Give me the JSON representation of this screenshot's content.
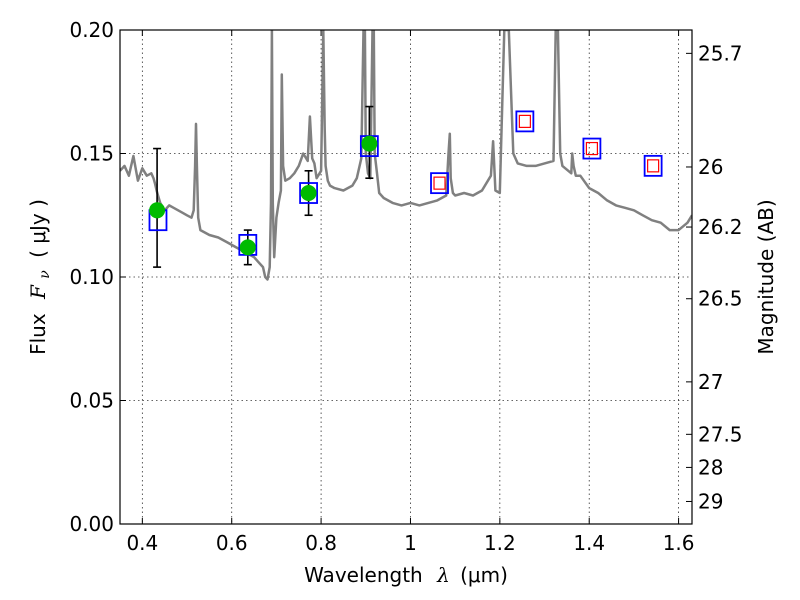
{
  "chart_data": {
    "type": "scatter",
    "title": "",
    "xlabel": {
      "text": "Wavelength",
      "symbol": "λ",
      "unit": "(μm)"
    },
    "ylabel": {
      "text": "Flux",
      "symbol": "F",
      "subscript": "ν",
      "unit": "( μJy )"
    },
    "y2label": "Magnitude (AB)",
    "xlim": [
      0.35,
      1.63
    ],
    "ylim": [
      0.0,
      0.2
    ],
    "grid": true,
    "x_ticks": [
      {
        "v": 0.4,
        "label": "0.4"
      },
      {
        "v": 0.6,
        "label": "0.6"
      },
      {
        "v": 0.8,
        "label": "0.8"
      },
      {
        "v": 1.0,
        "label": "1"
      },
      {
        "v": 1.2,
        "label": "1.2"
      },
      {
        "v": 1.4,
        "label": "1.4"
      },
      {
        "v": 1.6,
        "label": "1.6"
      }
    ],
    "y_ticks": [
      {
        "v": 0.0,
        "label": "0.00"
      },
      {
        "v": 0.05,
        "label": "0.05"
      },
      {
        "v": 0.1,
        "label": "0.10"
      },
      {
        "v": 0.15,
        "label": "0.15"
      },
      {
        "v": 0.2,
        "label": "0.20"
      }
    ],
    "y2_ticks": [
      {
        "mag": 25.7,
        "label": "25.7"
      },
      {
        "mag": 26,
        "label": "26"
      },
      {
        "mag": 26.2,
        "label": "26.2"
      },
      {
        "mag": 26.5,
        "label": "26.5"
      },
      {
        "mag": 27,
        "label": "27"
      },
      {
        "mag": 27.5,
        "label": "27.5"
      },
      {
        "mag": 28,
        "label": "28"
      },
      {
        "mag": 29,
        "label": "29"
      }
    ],
    "model_spectrum": {
      "color": "#808080",
      "x": [
        0.35,
        0.36,
        0.37,
        0.38,
        0.39,
        0.4,
        0.41,
        0.42,
        0.425,
        0.428,
        0.432,
        0.435,
        0.44,
        0.45,
        0.46,
        0.47,
        0.48,
        0.49,
        0.5,
        0.51,
        0.515,
        0.518,
        0.52,
        0.522,
        0.525,
        0.53,
        0.55,
        0.57,
        0.59,
        0.61,
        0.63,
        0.65,
        0.66,
        0.67,
        0.675,
        0.68,
        0.685,
        0.688,
        0.69,
        0.692,
        0.695,
        0.7,
        0.705,
        0.71,
        0.712,
        0.715,
        0.72,
        0.73,
        0.74,
        0.75,
        0.76,
        0.77,
        0.775,
        0.78,
        0.785,
        0.79,
        0.8,
        0.805,
        0.808,
        0.81,
        0.815,
        0.82,
        0.83,
        0.85,
        0.87,
        0.88,
        0.89,
        0.895,
        0.898,
        0.9,
        0.905,
        0.91,
        0.915,
        0.918,
        0.92,
        0.925,
        0.93,
        0.94,
        0.96,
        0.98,
        1.0,
        1.02,
        1.04,
        1.06,
        1.08,
        1.085,
        1.088,
        1.09,
        1.095,
        1.1,
        1.12,
        1.14,
        1.16,
        1.18,
        1.185,
        1.19,
        1.2,
        1.21,
        1.215,
        1.22,
        1.23,
        1.24,
        1.26,
        1.28,
        1.3,
        1.32,
        1.325,
        1.33,
        1.335,
        1.34,
        1.36,
        1.362,
        1.365,
        1.37,
        1.38,
        1.4,
        1.42,
        1.44,
        1.46,
        1.48,
        1.5,
        1.52,
        1.54,
        1.56,
        1.58,
        1.6,
        1.62,
        1.63
      ],
      "y": [
        0.143,
        0.145,
        0.141,
        0.149,
        0.139,
        0.144,
        0.141,
        0.142,
        0.14,
        0.138,
        0.135,
        0.133,
        0.13,
        0.127,
        0.129,
        0.128,
        0.127,
        0.126,
        0.125,
        0.124,
        0.127,
        0.145,
        0.162,
        0.145,
        0.124,
        0.119,
        0.117,
        0.116,
        0.114,
        0.112,
        0.11,
        0.108,
        0.106,
        0.104,
        0.1,
        0.099,
        0.104,
        0.13,
        0.2,
        0.13,
        0.108,
        0.124,
        0.13,
        0.135,
        0.182,
        0.145,
        0.139,
        0.14,
        0.142,
        0.145,
        0.15,
        0.147,
        0.165,
        0.148,
        0.146,
        0.14,
        0.143,
        0.2,
        0.16,
        0.145,
        0.139,
        0.137,
        0.136,
        0.135,
        0.137,
        0.14,
        0.148,
        0.2,
        0.2,
        0.15,
        0.142,
        0.14,
        0.2,
        0.2,
        0.15,
        0.142,
        0.134,
        0.132,
        0.13,
        0.129,
        0.13,
        0.129,
        0.13,
        0.131,
        0.133,
        0.15,
        0.158,
        0.14,
        0.134,
        0.133,
        0.134,
        0.133,
        0.135,
        0.141,
        0.155,
        0.135,
        0.134,
        0.2,
        0.2,
        0.2,
        0.15,
        0.146,
        0.145,
        0.145,
        0.146,
        0.147,
        0.2,
        0.2,
        0.15,
        0.145,
        0.142,
        0.15,
        0.145,
        0.141,
        0.141,
        0.136,
        0.134,
        0.131,
        0.129,
        0.128,
        0.127,
        0.125,
        0.123,
        0.122,
        0.119,
        0.119,
        0.122,
        0.125
      ]
    },
    "series": [
      {
        "marker": "circle",
        "color": "#00bb00",
        "points": [
          {
            "x": 0.433,
            "y": 0.127,
            "yerr_low": 0.104,
            "yerr_high": 0.152
          },
          {
            "x": 0.636,
            "y": 0.112,
            "yerr_low": 0.105,
            "yerr_high": 0.119
          },
          {
            "x": 0.772,
            "y": 0.134,
            "yerr_low": 0.125,
            "yerr_high": 0.143
          },
          {
            "x": 0.908,
            "y": 0.154,
            "yerr_low": 0.14,
            "yerr_high": 0.169
          }
        ]
      },
      {
        "marker": "square-open",
        "color": "#0000ff",
        "points": [
          {
            "x": 0.435,
            "y": 0.123
          },
          {
            "x": 0.636,
            "y": 0.113
          },
          {
            "x": 0.772,
            "y": 0.134
          },
          {
            "x": 0.908,
            "y": 0.153
          },
          {
            "x": 1.065,
            "y": 0.138
          },
          {
            "x": 1.256,
            "y": 0.163
          },
          {
            "x": 1.406,
            "y": 0.152
          },
          {
            "x": 1.543,
            "y": 0.145
          }
        ]
      },
      {
        "marker": "square-open-small",
        "color": "#ff0000",
        "points": [
          {
            "x": 1.065,
            "y": 0.138
          },
          {
            "x": 1.256,
            "y": 0.163
          },
          {
            "x": 1.406,
            "y": 0.152
          },
          {
            "x": 1.543,
            "y": 0.145
          }
        ]
      }
    ]
  }
}
